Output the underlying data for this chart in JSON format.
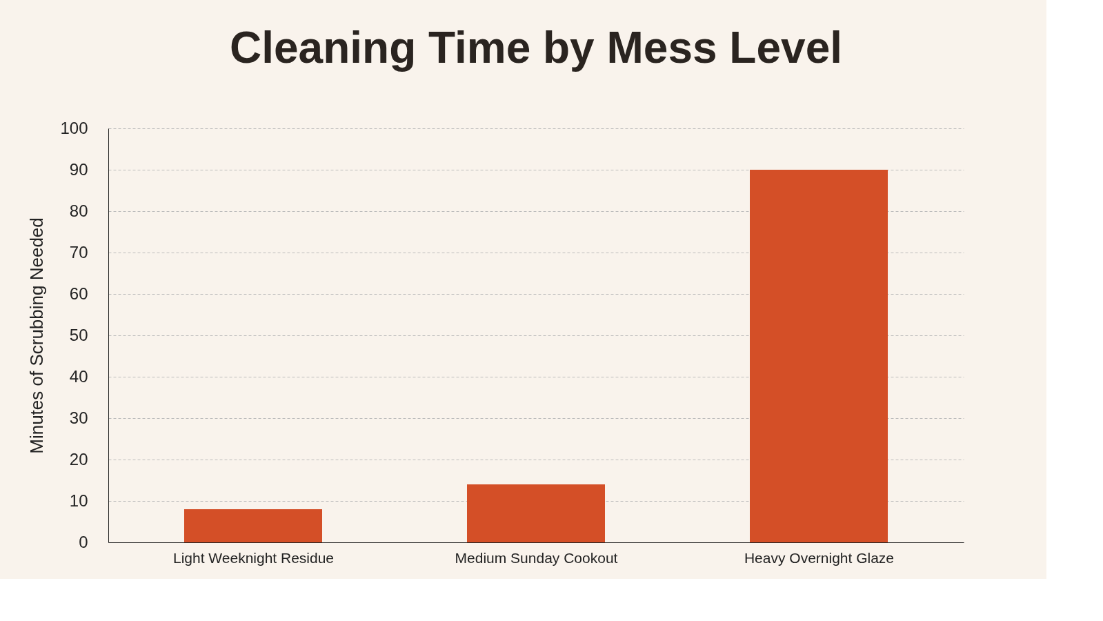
{
  "chart_data": {
    "type": "bar",
    "title": "Cleaning Time by Mess Level",
    "ylabel": "Minutes of Scrubbing Needed",
    "categories": [
      "Light Weeknight Residue",
      "Medium Sunday Cookout",
      "Heavy Overnight Glaze"
    ],
    "values": [
      8,
      14,
      90
    ],
    "color": "#d44f27",
    "ylim": [
      0,
      100
    ],
    "yticks": [
      0,
      10,
      20,
      30,
      40,
      50,
      60,
      70,
      80,
      90,
      100
    ],
    "grid": "y"
  }
}
